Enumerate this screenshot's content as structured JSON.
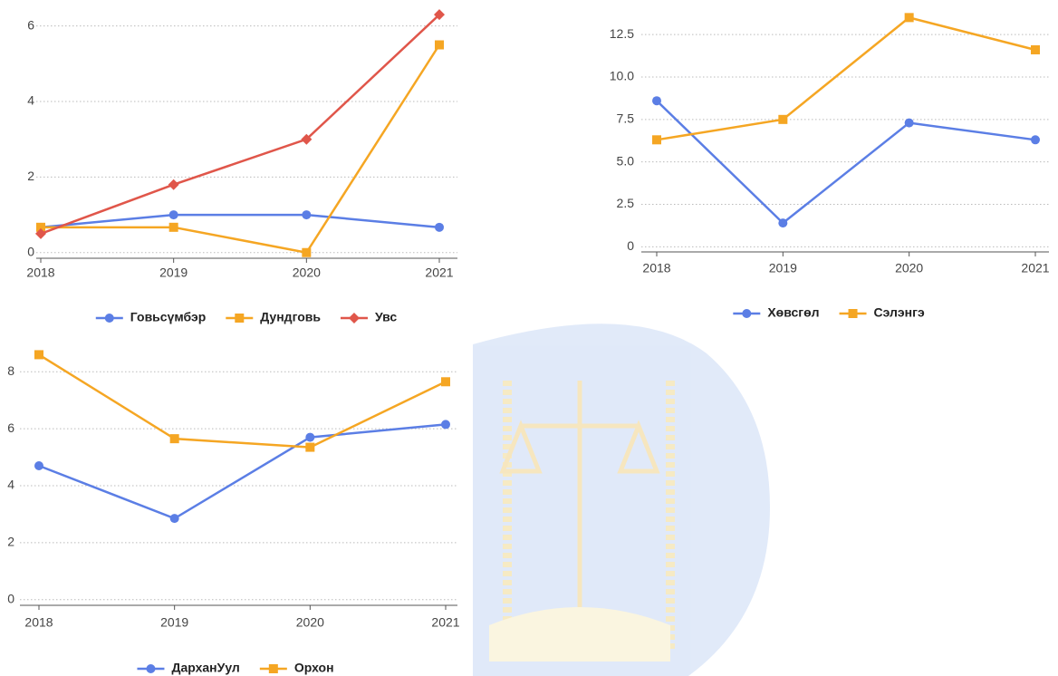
{
  "chart_data": [
    {
      "type": "line",
      "categories": [
        "2018",
        "2019",
        "2020",
        "2021"
      ],
      "ylim": [
        -0.15,
        6.4
      ],
      "yticks": [
        0,
        2,
        4,
        6
      ],
      "grid": true,
      "series": [
        {
          "name": "Говьсүмбэр",
          "color": "#5b7ee5",
          "marker": "circle",
          "values": [
            0.67,
            1,
            1,
            0.67
          ]
        },
        {
          "name": "Дундговь",
          "color": "#f5a623",
          "marker": "square",
          "values": [
            0.67,
            0.67,
            0,
            5.5
          ]
        },
        {
          "name": "Увс",
          "color": "#e0564a",
          "marker": "diamond",
          "values": [
            0.5,
            1.8,
            3,
            6.3
          ]
        }
      ]
    },
    {
      "type": "line",
      "categories": [
        "2018",
        "2019",
        "2020",
        "2021"
      ],
      "ylim": [
        -0.3,
        14
      ],
      "yticks": [
        0,
        2.5,
        {
          "value": 5,
          "label": "5.0"
        },
        7.5,
        {
          "value": 10,
          "label": "10.0"
        },
        12.5
      ],
      "grid": true,
      "series": [
        {
          "name": "Хөвсгөл",
          "color": "#5b7ee5",
          "marker": "circle",
          "values": [
            8.6,
            1.4,
            7.3,
            6.3
          ]
        },
        {
          "name": "Сэлэнгэ",
          "color": "#f5a623",
          "marker": "square",
          "values": [
            6.3,
            7.5,
            13.5,
            11.6
          ]
        }
      ]
    },
    {
      "type": "line",
      "categories": [
        "2018",
        "2019",
        "2020",
        "2021"
      ],
      "ylim": [
        -0.2,
        8.9
      ],
      "yticks": [
        0,
        2,
        4,
        6,
        8
      ],
      "grid": true,
      "series": [
        {
          "name": "ДарханУул",
          "color": "#5b7ee5",
          "marker": "circle",
          "values": [
            4.7,
            2.85,
            5.7,
            6.15
          ]
        },
        {
          "name": "Орхон",
          "color": "#f5a623",
          "marker": "square",
          "values": [
            8.6,
            5.65,
            5.35,
            7.65
          ]
        }
      ]
    }
  ]
}
